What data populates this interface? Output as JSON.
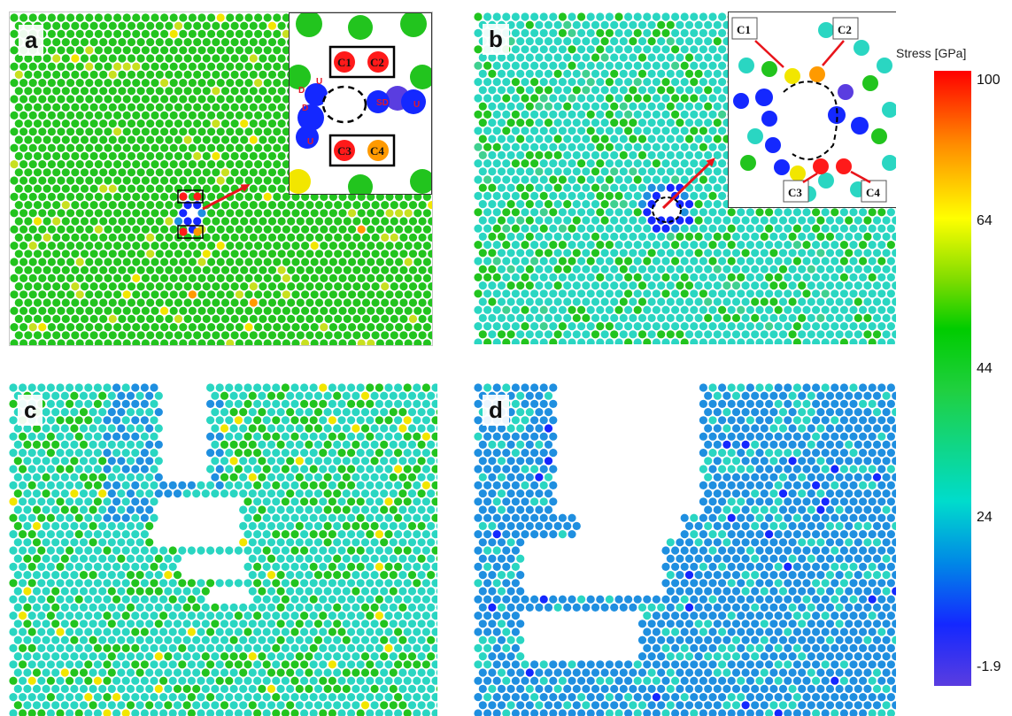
{
  "panels": [
    {
      "label": "a"
    },
    {
      "label": "b"
    },
    {
      "label": "c"
    },
    {
      "label": "d"
    }
  ],
  "inset_a": {
    "carbon_labels": [
      "C1",
      "C2",
      "C3",
      "C4"
    ],
    "markers": [
      "D",
      "U",
      "D",
      "U",
      "SD",
      "U"
    ]
  },
  "inset_b": {
    "carbon_labels": [
      "C1",
      "C2",
      "C3",
      "C4"
    ]
  },
  "colorbar": {
    "title": "Stress [GPa]",
    "ticks": [
      "100",
      "64",
      "44",
      "24",
      "-1.9"
    ]
  },
  "colors": {
    "green": "#22c41e",
    "cyan": "#2ad6c2",
    "blue": "#1f8fe0",
    "deep_blue": "#1428ff",
    "red": "#ff1a1a",
    "orange": "#ff9a00",
    "yellow": "#f2e600",
    "arrow": "#e8141a"
  }
}
